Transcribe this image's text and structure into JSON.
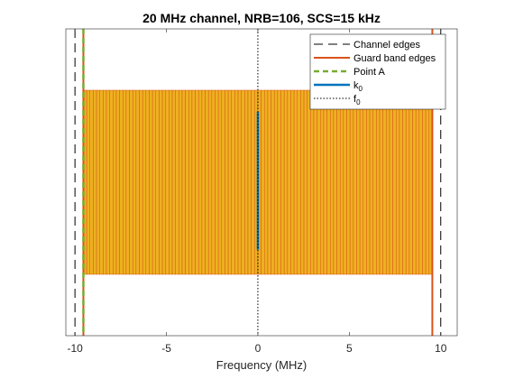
{
  "chart_data": {
    "type": "bar",
    "title": "20 MHz channel, NRB=106, SCS=15 kHz",
    "xlabel": "Frequency (MHz)",
    "ylabel": "",
    "xlim": [
      -10.5,
      10.9
    ],
    "ylim": [
      0,
      1
    ],
    "xticks": [
      -10,
      -5,
      0,
      5,
      10
    ],
    "xtick_labels": [
      "-10",
      "-5",
      "0",
      "5",
      "10"
    ],
    "grid": false,
    "legend_position": "top-right",
    "resource_blocks": {
      "count": 106,
      "rb_width_mhz": 0.18,
      "start_mhz": -9.54,
      "end_mhz": 9.54,
      "y_bottom": 0.2,
      "y_top": 0.8,
      "face_color": "#EDB120",
      "edge_color": "#D95319"
    },
    "lines": [
      {
        "name": "Channel edges",
        "x": [
          -10,
          10
        ],
        "style": "long-dash",
        "color": "#000000"
      },
      {
        "name": "Guard band edges",
        "x": [
          -9.54,
          9.54
        ],
        "style": "solid",
        "color": "#D95319"
      },
      {
        "name": "Point A",
        "x": [
          -9.54
        ],
        "style": "dash",
        "color": "#77AC30"
      },
      {
        "name": "k",
        "sub": "0",
        "x": [
          0
        ],
        "y_range": [
          0.28,
          0.73
        ],
        "style": "solid",
        "color": "#0072BD"
      },
      {
        "name": "f",
        "sub": "0",
        "x": [
          0
        ],
        "style": "dotted",
        "color": "#000000"
      }
    ]
  }
}
